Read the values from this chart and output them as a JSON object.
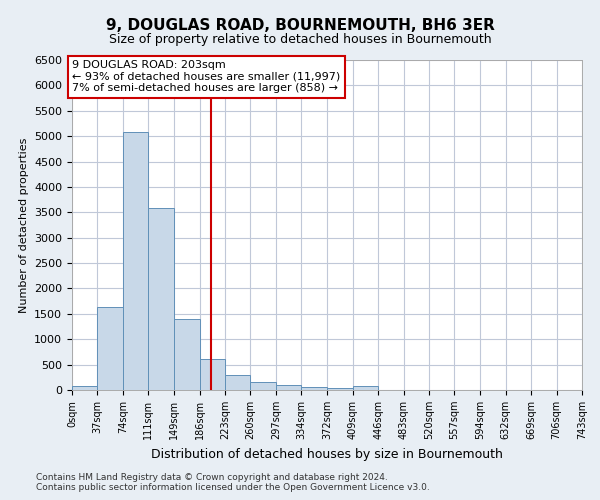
{
  "title": "9, DOUGLAS ROAD, BOURNEMOUTH, BH6 3ER",
  "subtitle": "Size of property relative to detached houses in Bournemouth",
  "xlabel": "Distribution of detached houses by size in Bournemouth",
  "ylabel": "Number of detached properties",
  "footnote1": "Contains HM Land Registry data © Crown copyright and database right 2024.",
  "footnote2": "Contains public sector information licensed under the Open Government Licence v3.0.",
  "bar_color": "#c8d8e8",
  "bar_edge_color": "#6090b8",
  "grid_color": "#c0c8d8",
  "vline_color": "#cc0000",
  "vline_x": 203,
  "annotation_text": "9 DOUGLAS ROAD: 203sqm\n← 93% of detached houses are smaller (11,997)\n7% of semi-detached houses are larger (858) →",
  "annotation_box_color": "#ffffff",
  "annotation_box_edge": "#cc0000",
  "bin_edges": [
    0,
    37,
    74,
    111,
    149,
    186,
    223,
    260,
    297,
    334,
    372,
    409,
    446,
    483,
    520,
    557,
    594,
    632,
    669,
    706,
    743
  ],
  "bar_heights": [
    70,
    1640,
    5080,
    3590,
    1400,
    620,
    300,
    155,
    90,
    60,
    35,
    70,
    0,
    0,
    0,
    0,
    0,
    0,
    0,
    0
  ],
  "ylim": [
    0,
    6500
  ],
  "yticks": [
    0,
    500,
    1000,
    1500,
    2000,
    2500,
    3000,
    3500,
    4000,
    4500,
    5000,
    5500,
    6000,
    6500
  ],
  "background_color": "#e8eef4",
  "plot_background_color": "#ffffff",
  "title_fontsize": 11,
  "subtitle_fontsize": 9,
  "ylabel_fontsize": 8,
  "xlabel_fontsize": 9,
  "ytick_fontsize": 8,
  "xtick_fontsize": 7
}
